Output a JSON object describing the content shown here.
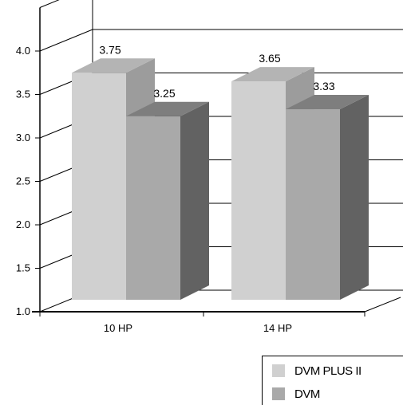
{
  "chart_data": {
    "type": "bar",
    "categories": [
      "10 HP",
      "14 HP"
    ],
    "series": [
      {
        "name": "DVM PLUS II",
        "values": [
          3.75,
          3.65
        ],
        "labels": [
          "3.75",
          "3.65"
        ],
        "colors": {
          "front": "#d0d0d0",
          "side": "#9c9c9c",
          "top": "#b4b4b4"
        }
      },
      {
        "name": "DVM",
        "values": [
          3.25,
          3.33
        ],
        "labels": [
          "3.25",
          "3.33"
        ],
        "colors": {
          "front": "#a9a9a9",
          "side": "#626262",
          "top": "#7e7e7e"
        }
      }
    ],
    "ylim": [
      1.0,
      4.0
    ],
    "yticks": [
      "1.0",
      "1.5",
      "2.0",
      "2.5",
      "3.0",
      "3.5",
      "4.0"
    ],
    "grid": true,
    "legend_position": "bottom-right"
  },
  "legend": {
    "items": [
      {
        "label": "DVM PLUS II",
        "color": "#d0d0d0"
      },
      {
        "label": "DVM",
        "color": "#a9a9a9"
      }
    ]
  }
}
